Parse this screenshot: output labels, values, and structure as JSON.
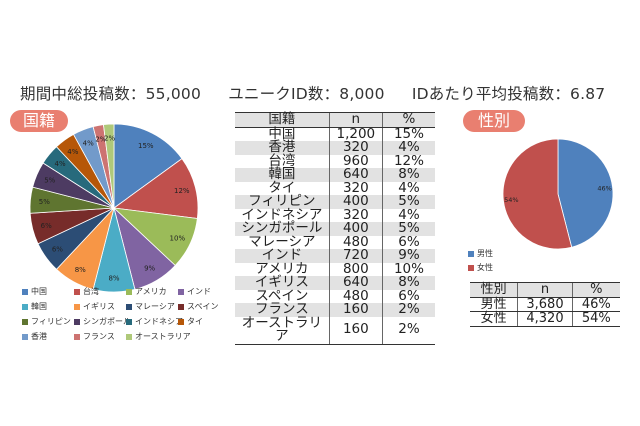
{
  "summary": {
    "total_posts": "期間中総投稿数：55,000",
    "unique_ids": "ユニークID数：8,000",
    "avg_per_id": "IDあたり平均投稿数：6.87"
  },
  "sections": {
    "country": "国籍",
    "gender": "性別"
  },
  "colors": {
    "中国": "#4f81bd",
    "台湾": "#c0504d",
    "アメリカ": "#9bbb59",
    "インド": "#8064a2",
    "韓国": "#4bacc6",
    "イギリス": "#f79646",
    "マレーシア": "#2c4d75",
    "スペイン": "#772c2a",
    "フィリピン": "#5f7530",
    "シンガポール": "#4d3b62",
    "インドネシア": "#276a7c",
    "タイ": "#b65708",
    "香港": "#729aca",
    "フランス": "#cd7371",
    "オーストラリア": "#afc97a",
    "男性": "#4f81bd",
    "女性": "#c0504d",
    "header_shade": "#e2e2e2"
  },
  "chart_data": [
    {
      "type": "pie",
      "name": "nationality",
      "categories": [
        "中国",
        "台湾",
        "アメリカ",
        "インド",
        "韓国",
        "イギリス",
        "マレーシア",
        "スペイン",
        "フィリピン",
        "シンガポール",
        "インドネシア",
        "タイ",
        "香港",
        "フランス",
        "オーストラリア"
      ],
      "values": [
        15,
        12,
        10,
        9,
        8,
        8,
        6,
        6,
        5,
        5,
        4,
        4,
        4,
        2,
        2
      ],
      "data_labels": [
        "15%",
        "12%",
        "10%",
        "9%",
        "8%",
        "8%",
        "6%",
        "6%",
        "5%",
        "5%",
        "4%",
        "4%",
        "4%",
        "2%",
        "2%"
      ],
      "legend_position": "bottom"
    },
    {
      "type": "pie",
      "name": "gender",
      "categories": [
        "男性",
        "女性"
      ],
      "values": [
        46,
        54
      ],
      "data_labels": [
        "46%",
        "54%"
      ],
      "legend_position": "bottom"
    },
    {
      "type": "table",
      "name": "nationality_table",
      "columns": [
        "国籍",
        "n",
        "%"
      ],
      "rows": [
        [
          "中国",
          "1,200",
          "15%"
        ],
        [
          "香港",
          "320",
          "4%"
        ],
        [
          "台湾",
          "960",
          "12%"
        ],
        [
          "韓国",
          "640",
          "8%"
        ],
        [
          "タイ",
          "320",
          "4%"
        ],
        [
          "フィリピン",
          "400",
          "5%"
        ],
        [
          "インドネシア",
          "320",
          "4%"
        ],
        [
          "シンガポール",
          "400",
          "5%"
        ],
        [
          "マレーシア",
          "480",
          "6%"
        ],
        [
          "インド",
          "720",
          "9%"
        ],
        [
          "アメリカ",
          "800",
          "10%"
        ],
        [
          "イギリス",
          "640",
          "8%"
        ],
        [
          "スペイン",
          "480",
          "6%"
        ],
        [
          "フランス",
          "160",
          "2%"
        ],
        [
          "オーストラリア",
          "160",
          "2%"
        ]
      ]
    },
    {
      "type": "table",
      "name": "gender_table",
      "columns": [
        "性別",
        "n",
        "%"
      ],
      "rows": [
        [
          "男性",
          "3,680",
          "46%"
        ],
        [
          "女性",
          "4,320",
          "54%"
        ]
      ]
    }
  ]
}
